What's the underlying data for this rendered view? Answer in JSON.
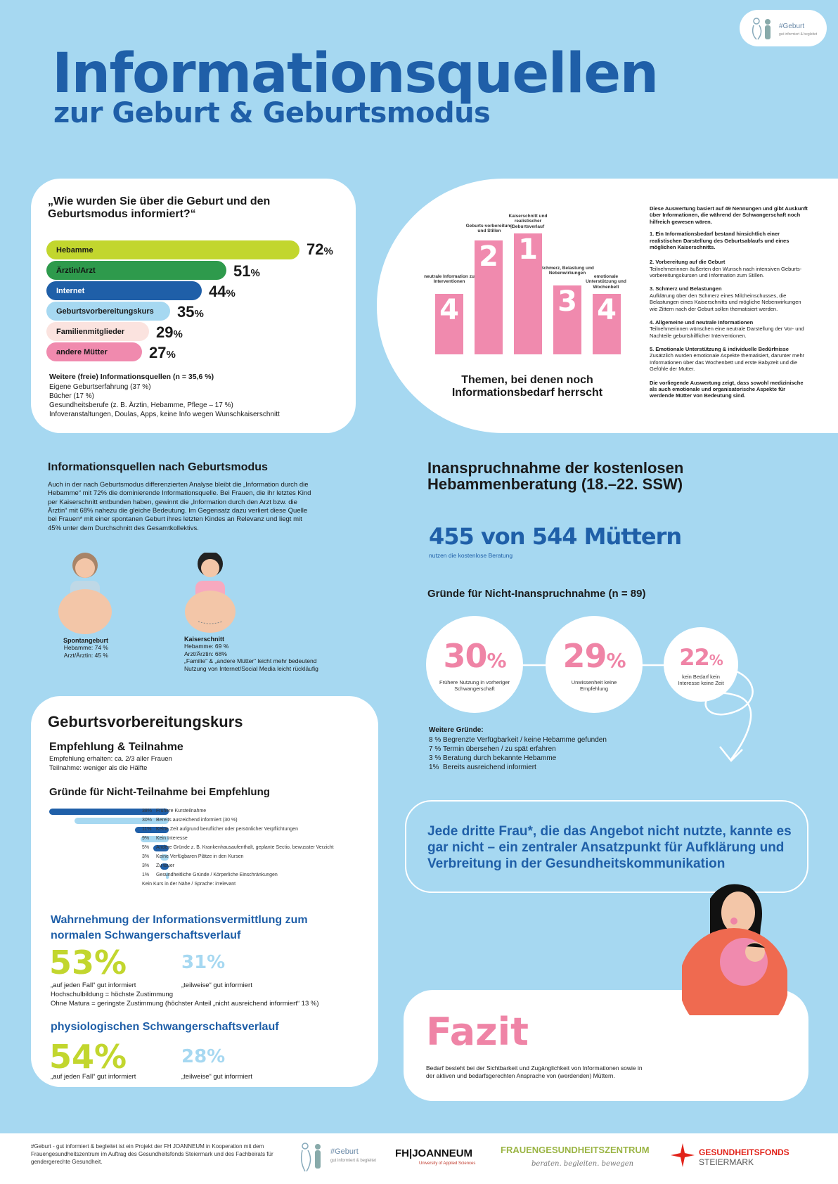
{
  "header": {
    "title": "Informationsquellen",
    "subtitle": "zur Geburt & Geburtsmodus",
    "logo_text": "#Geburt",
    "logo_sub": "gut informiert & begleitet"
  },
  "sources": {
    "question": "„Wie wurden Sie über die Geburt und den Geburtsmodus informiert?“",
    "bars": [
      {
        "label": "Hebamme",
        "value": "72",
        "unit": "%"
      },
      {
        "label": "Ärztin/Arzt",
        "value": "51",
        "unit": "%"
      },
      {
        "label": "Internet",
        "value": "44",
        "unit": "%"
      },
      {
        "label": "Geburtsvorbereitungskurs",
        "value": "35",
        "unit": "%"
      },
      {
        "label": "Familienmitglieder",
        "value": "29",
        "unit": "%"
      },
      {
        "label": "andere Mütter",
        "value": "27",
        "unit": "%"
      }
    ],
    "further_title": "Weitere (freie) Informationsquellen (n = 35,6 %)",
    "further": [
      "Eigene Geburtserfahrung (37 %)",
      "Bücher (17 %)",
      "Gesundheitsberufe (z. B. Ärztin, Hebamme, Pflege – 17 %)",
      "Infoveranstaltungen, Doulas, Apps, keine Info wegen Wunschkaiserschnitt"
    ]
  },
  "topics": {
    "caption": "Themen, bei denen noch Informationsbedarf herrscht",
    "bars": [
      {
        "label": "neutrale Information zu Interventionen",
        "rank": "4"
      },
      {
        "label": "Geburts-vorbereitung und Stillen",
        "rank": "2"
      },
      {
        "label": "Kaiserschnitt und realistischer Geburtsverlauf",
        "rank": "1"
      },
      {
        "label": "Schmerz, Belastung und Nebenwirkungen",
        "rank": "3"
      },
      {
        "label": "emotionale Unterstützung und Wochenbett",
        "rank": "4"
      }
    ],
    "intro": "Diese Auswertung basiert auf 49 Nennungen und gibt Auskunft über Informationen, die während der Schwangerschaft noch hilfreich gewesen wären.",
    "points": [
      {
        "t": "1. Ein Informationsbedarf bestand hinsichtlich einer realistischen Darstellung des Geburtsablaufs und eines möglichen Kaiserschnitts.",
        "d": ""
      },
      {
        "t": "2. Vorbereitung auf die Geburt",
        "d": "Teilnehmerinnen äußerten den Wunsch nach intensiven Geburts-vorbereitungskursen und Information zum Stillen."
      },
      {
        "t": "3. Schmerz und Belastungen",
        "d": "Aufklärung über den Schmerz eines Milcheinschusses, die Belastungen eines Kaiserschnitts und mögliche Nebenwirkungen wie Zittern nach der Geburt sollen thematisiert werden."
      },
      {
        "t": "4. Allgemeine und neutrale Informationen",
        "d": "Teilnehmerinnen wünschen eine neutrale Darstellung der Vor- und Nachteile geburtshilflicher Interventionen."
      },
      {
        "t": "5. Emotionale Unterstützung & individuelle Bedürfnisse",
        "d": "Zusätzlich wurden emotionale Aspekte thematisiert, darunter mehr Informationen über das Wochenbett und erste Babyzeit und die Gefühle der Mutter."
      },
      {
        "t": "Die vorliegende Auswertung zeigt, dass sowohl medizinische als auch emotionale und organisatorische Aspekte für werdende Mütter von Bedeutung sind.",
        "d": ""
      }
    ]
  },
  "mode": {
    "title": "Informationsquellen nach Geburtsmodus",
    "text": "Auch in der nach Geburtsmodus differenzierten Analyse bleibt die „Information durch die Hebamme“ mit 72% die dominierende Informationsquelle. Bei Frauen, die ihr letztes Kind per Kaiserschnitt entbunden haben, gewinnt die „Information durch den Arzt bzw. die Ärztin“ mit 68% nahezu die gleiche Bedeutung. Im Gegensatz dazu verliert diese Quelle bei Frauen* mit einer spontanen Geburt ihres letzten Kindes an Relevanz und liegt mit 45% unter dem Durchschnitt des Gesamtkollektivs.",
    "spont": {
      "title": "Spontangeburt",
      "l1": "Hebamme: 74 %",
      "l2": "Arzt/Ärztin: 45 %"
    },
    "kaiser": {
      "title": "Kaiserschnitt",
      "l1": "Hebamme: 69 %",
      "l2": "Arzt/Ärztin: 68%",
      "l3": "„Familie“ & „andere Mütter“ leicht mehr bedeutend",
      "l4": "Nutzung von Internet/Social Media leicht rückläufig"
    }
  },
  "midwife": {
    "title": "Inanspruchnahme der kostenlosen Hebammenberatung (18.–22. SSW)",
    "big": "455 von 544 Müttern",
    "big_sub": "nutzen die kostenlose Beratung",
    "reasons_title": "Gründe für Nicht-Inanspruchnahme (n = 89)",
    "circles": [
      {
        "value": "30",
        "unit": "%",
        "label": "Frühere Nutzung in vorheriger Schwangerschaft"
      },
      {
        "value": "29",
        "unit": "%",
        "label": "Unwissenheit keine Empfehlung"
      },
      {
        "value": "22",
        "unit": "%",
        "label": "kein Bedarf kein Interesse keine Zeit"
      }
    ],
    "further_title": "Weitere Gründe:",
    "further": [
      {
        "p": "8 %",
        "t": "Begrenzte Verfügbarkeit / keine Hebamme gefunden"
      },
      {
        "p": "7 %",
        "t": "Termin übersehen / zu spät erfahren"
      },
      {
        "p": "3 %",
        "t": "Beratung durch bekannte Hebamme"
      },
      {
        "p": "1%",
        "t": "Bereits ausreichend informiert"
      }
    ],
    "quote": "Jede dritte Frau*, die das Angebot nicht nutzte, kannte es gar nicht – ein zentraler Ansatzpunkt für Aufklärung und Verbreitung in der Gesundheitskommunikation"
  },
  "course": {
    "title": "Geburtsvorbereitungskurs",
    "sub": "Empfehlung & Teilnahme",
    "l1": "Empfehlung erhalten: ca. 2/3 aller Frauen",
    "l2": "Teilnahme: weniger als die Hälfte",
    "reasons_title": "Gründe für Nicht-Teilnahme bei Empfehlung",
    "reasons": [
      {
        "p": "38%",
        "t": "Frühere Kursteilnahme"
      },
      {
        "p": "30%",
        "t": "Bereits ausreichend informiert (30 %)"
      },
      {
        "p": "11%",
        "t": "Keine Zeit aufgrund beruflicher oder persönlicher Verpflichtungen"
      },
      {
        "p": "9%",
        "t": "Kein Interesse"
      },
      {
        "p": "5%",
        "t": "Andere Gründe z. B. Krankenhausaufenthalt, geplante Sectio, bewusster Verzicht"
      },
      {
        "p": "3%",
        "t": "Keine Verfügbaren Plätze in den Kursen"
      },
      {
        "p": "3%",
        "t": "Zu teuer"
      },
      {
        "p": "1%",
        "t": "Gesundheitliche Gründe / Körperliche Einschränkungen"
      },
      {
        "p": "",
        "t": "Kein Kurs in der Nähe / Sprache: irrelevant"
      }
    ],
    "perc_title": "Wahrnehmung der Informationsvermittlung zum normalen Schwangerschaftsverlauf",
    "p1a": "53%",
    "p1a_l": "„auf jeden Fall“ gut informiert",
    "p1b": "31%",
    "p1b_l": "„teilweise“ gut informiert",
    "n1": "Hochschulbildung = höchste Zustimmung",
    "n2": "Ohne Matura = geringste Zustimmung (höchster Anteil „nicht ausreichend informiert“ 13 %)",
    "phys_title": "physiologischen Schwangerschaftsverlauf",
    "p2a": "54%",
    "p2a_l": "„auf jeden Fall“ gut informiert",
    "p2b": "28%",
    "p2b_l": "„teilweise“ gut informiert"
  },
  "fazit": {
    "title": "Fazit",
    "text": "Bedarf besteht bei der Sichtbarkeit und Zugänglichkeit von Informationen sowie in der aktiven und bedarfsgerechten Ansprache von (werdenden) Müttern."
  },
  "footer": {
    "text": "#Geburt - gut informiert & begleitet ist ein Projekt der FH JOANNEUM in Kooperation mit dem Frauengesundheitszentrum im Auftrag des Gesundheitsfonds Steiermark und des Fachbeirats für gendergerechte Gesundheit.",
    "logo1": "#Geburt",
    "logo1_sub": "gut informiert & begleitet",
    "logo2": "FH|JOANNEUM",
    "logo2_sub": "University of Applied Sciences",
    "logo3": "FRAUENGESUNDHEITSZENTRUM",
    "logo3_sub": "beraten. begleiten. bewegen",
    "logo4": "GESUNDHEITSFONDS",
    "logo4_sub": "STEIERMARK"
  },
  "colors": {
    "blue": "#1f5fa8",
    "pink": "#ef84a6",
    "lime": "#c2d62e",
    "sky": "#a6d8f1"
  },
  "chart_data": [
    {
      "type": "bar",
      "title": "„Wie wurden Sie über die Geburt und den Geburtsmodus informiert?“",
      "categories": [
        "Hebamme",
        "Ärztin/Arzt",
        "Internet",
        "Geburtsvorbereitungskurs",
        "Familienmitglieder",
        "andere Mütter"
      ],
      "values": [
        72,
        51,
        44,
        35,
        29,
        27
      ]
    },
    {
      "type": "bar",
      "title": "Gründe für Nicht-Teilnahme bei Empfehlung",
      "categories": [
        "Frühere Kursteilnahme",
        "Bereits ausreichend informiert (30 %)",
        "Keine Zeit aufgrund beruflicher oder persönlicher Verpflichtungen",
        "Kein Interesse",
        "Andere Gründe z. B. Krankenhausaufenthalt, geplante Sectio, bewusster Verzicht",
        "Keine Verfügbaren Plätze in den Kursen",
        "Zu teuer",
        "Gesundheitliche Gründe / Körperliche Einschränkungen"
      ],
      "values": [
        38,
        30,
        11,
        9,
        5,
        3,
        3,
        1
      ]
    },
    {
      "type": "bar",
      "title": "Themen, bei denen noch Informationsbedarf herrscht",
      "categories": [
        "neutrale Information zu Interventionen",
        "Geburts-vorbereitung und Stillen",
        "Kaiserschnitt und realistischer Geburtsverlauf",
        "Schmerz, Belastung und Nebenwirkungen",
        "emotionale Unterstützung und Wochenbett"
      ],
      "ranks": [
        4,
        2,
        1,
        3,
        4
      ]
    }
  ]
}
